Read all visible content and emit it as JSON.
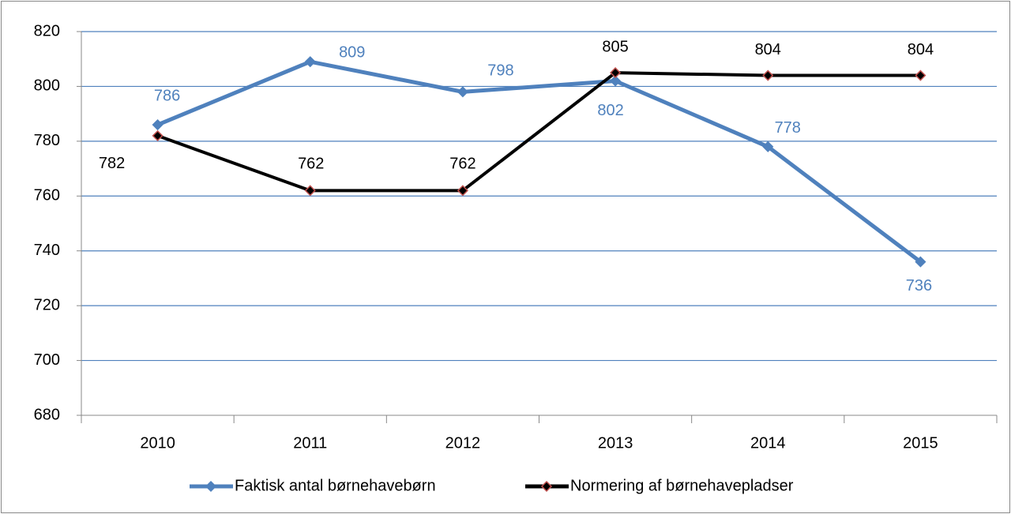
{
  "chart_data": {
    "type": "line",
    "categories": [
      "2010",
      "2011",
      "2012",
      "2013",
      "2014",
      "2015"
    ],
    "series": [
      {
        "name": "Faktisk antal børnehavebørn",
        "color": "#4f81bd",
        "marker_color": "#4f81bd",
        "values": [
          786,
          809,
          798,
          802,
          778,
          736
        ]
      },
      {
        "name": "Normering af børnehavepladser",
        "color": "#000000",
        "marker_color": "#c0504d",
        "values": [
          782,
          762,
          762,
          805,
          804,
          804
        ]
      }
    ],
    "ylim": [
      680,
      820
    ],
    "yticks": [
      680,
      700,
      720,
      740,
      760,
      780,
      800,
      820
    ],
    "grid": true,
    "legend": "bottom"
  }
}
